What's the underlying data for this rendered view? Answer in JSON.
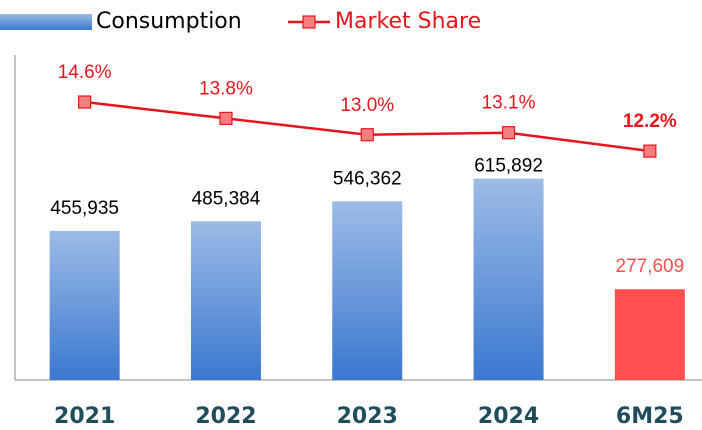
{
  "chart_data": {
    "type": "bar_line",
    "categories": [
      "2021",
      "2022",
      "2023",
      "2024",
      "6M25"
    ],
    "series": [
      {
        "name": "Consumption",
        "type": "bar",
        "color": "#3b78cf",
        "colors": [
          "#3b78cf",
          "#3b78cf",
          "#3b78cf",
          "#3b78cf",
          "#ff4f4f"
        ],
        "values": [
          455935,
          485384,
          546362,
          615892,
          277609
        ],
        "value_labels": [
          "455,935",
          "485,384",
          "546,362",
          "615,892",
          "277,609"
        ]
      },
      {
        "name": "Market Share",
        "type": "line",
        "axis": "y2",
        "color": "#e8141c",
        "values": [
          14.6,
          13.8,
          13.0,
          13.1,
          12.2
        ],
        "value_labels": [
          "14.6%",
          "13.8%",
          "13.0%",
          "13.1%",
          "12.2%"
        ]
      }
    ],
    "emphasized_index": 4,
    "ylim": [
      0,
      1000000
    ],
    "y2lim": [
      1,
      17
    ],
    "legend": "top-left",
    "grid": false
  }
}
